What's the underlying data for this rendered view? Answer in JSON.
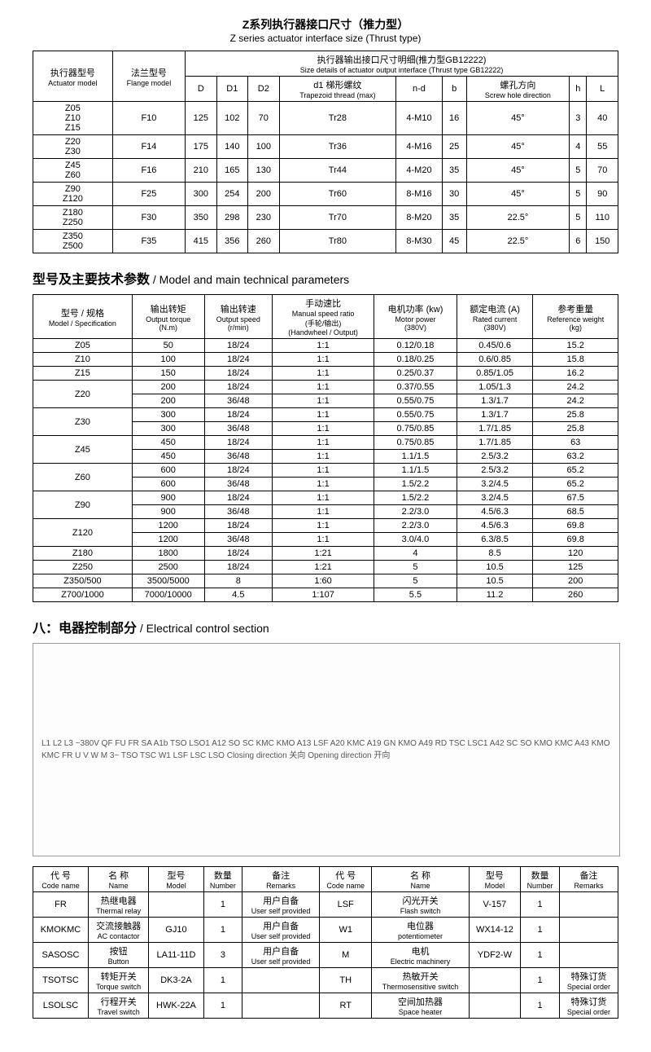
{
  "title": {
    "cn": "Z系列执行器接口尺寸（推力型）",
    "en": "Z series actuator interface size (Thrust type)"
  },
  "table1": {
    "headers": {
      "actuator_model": {
        "cn": "执行器型号",
        "en": "Actuator model"
      },
      "flange_model": {
        "cn": "法兰型号",
        "en": "Flange model"
      },
      "group_title": {
        "cn": "执行器输出接口尺寸明细(推力型GB12222)",
        "en": "Size details of actuator output interface (Thrust type GB12222)"
      },
      "D": "D",
      "D1": "D1",
      "D2": "D2",
      "d1": {
        "cn": "d1 梯形螺纹",
        "en": "Trapezoid thread (max)"
      },
      "nd": "n-d",
      "b": "b",
      "screw": {
        "cn": "螺孔方向",
        "en": "Screw hole direction"
      },
      "h": "h",
      "L": "L"
    },
    "rows": [
      {
        "model": "Z05\nZ10\nZ15",
        "flange": "F10",
        "D": "125",
        "D1": "102",
        "D2": "70",
        "d1": "Tr28",
        "nd": "4-M10",
        "b": "16",
        "screw": "45°",
        "h": "3",
        "L": "40"
      },
      {
        "model": "Z20\nZ30",
        "flange": "F14",
        "D": "175",
        "D1": "140",
        "D2": "100",
        "d1": "Tr36",
        "nd": "4-M16",
        "b": "25",
        "screw": "45°",
        "h": "4",
        "L": "55"
      },
      {
        "model": "Z45\nZ60",
        "flange": "F16",
        "D": "210",
        "D1": "165",
        "D2": "130",
        "d1": "Tr44",
        "nd": "4-M20",
        "b": "35",
        "screw": "45°",
        "h": "5",
        "L": "70"
      },
      {
        "model": "Z90\nZ120",
        "flange": "F25",
        "D": "300",
        "D1": "254",
        "D2": "200",
        "d1": "Tr60",
        "nd": "8-M16",
        "b": "30",
        "screw": "45°",
        "h": "5",
        "L": "90"
      },
      {
        "model": "Z180\nZ250",
        "flange": "F30",
        "D": "350",
        "D1": "298",
        "D2": "230",
        "d1": "Tr70",
        "nd": "8-M20",
        "b": "35",
        "screw": "22.5°",
        "h": "5",
        "L": "110"
      },
      {
        "model": "Z350\nZ500",
        "flange": "F35",
        "D": "415",
        "D1": "356",
        "D2": "260",
        "d1": "Tr80",
        "nd": "8-M30",
        "b": "45",
        "screw": "22.5°",
        "h": "6",
        "L": "150"
      }
    ]
  },
  "section2_title": {
    "cn": "型号及主要技术参数",
    "en": " / Model and main technical parameters"
  },
  "table2": {
    "headers": {
      "model": {
        "cn": "型号 / 规格",
        "en": "Model / Specification"
      },
      "torque": {
        "cn": "输出转矩",
        "en": "Output torque",
        "unit": "(N.m)"
      },
      "speed": {
        "cn": "输出转速",
        "en": "Output speed",
        "unit": "(r/min)"
      },
      "ratio": {
        "cn": "手动速比",
        "en": "Manual speed ratio",
        "sub": "(手轮/输出)",
        "sub_en": "(Handwheel / Output)"
      },
      "power": {
        "cn": "电机功率 (kw)",
        "en": "Motor power",
        "unit": "(380V)"
      },
      "current": {
        "cn": "额定电流 (A)",
        "en": "Rated current",
        "unit": "(380V)"
      },
      "weight": {
        "cn": "参考重量",
        "en": "Reference weight",
        "unit": "(kg)"
      }
    },
    "rows": [
      {
        "m": "Z05",
        "t": "50",
        "s": "18/24",
        "r": "1:1",
        "p": "0.12/0.18",
        "c": "0.45/0.6",
        "w": "15.2",
        "rs": 1
      },
      {
        "m": "Z10",
        "t": "100",
        "s": "18/24",
        "r": "1:1",
        "p": "0.18/0.25",
        "c": "0.6/0.85",
        "w": "15.8",
        "rs": 1
      },
      {
        "m": "Z15",
        "t": "150",
        "s": "18/24",
        "r": "1:1",
        "p": "0.25/0.37",
        "c": "0.85/1.05",
        "w": "16.2",
        "rs": 1
      },
      {
        "m": "Z20",
        "t": "200",
        "s": "18/24",
        "r": "1:1",
        "p": "0.37/0.55",
        "c": "1.05/1.3",
        "w": "24.2",
        "rs": 2
      },
      {
        "m": "",
        "t": "200",
        "s": "36/48",
        "r": "1:1",
        "p": "0.55/0.75",
        "c": "1.3/1.7",
        "w": "24.2",
        "rs": 0
      },
      {
        "m": "Z30",
        "t": "300",
        "s": "18/24",
        "r": "1:1",
        "p": "0.55/0.75",
        "c": "1.3/1.7",
        "w": "25.8",
        "rs": 2
      },
      {
        "m": "",
        "t": "300",
        "s": "36/48",
        "r": "1:1",
        "p": "0.75/0.85",
        "c": "1.7/1.85",
        "w": "25.8",
        "rs": 0
      },
      {
        "m": "Z45",
        "t": "450",
        "s": "18/24",
        "r": "1:1",
        "p": "0.75/0.85",
        "c": "1.7/1.85",
        "w": "63",
        "rs": 2
      },
      {
        "m": "",
        "t": "450",
        "s": "36/48",
        "r": "1:1",
        "p": "1.1/1.5",
        "c": "2.5/3.2",
        "w": "63.2",
        "rs": 0
      },
      {
        "m": "Z60",
        "t": "600",
        "s": "18/24",
        "r": "1:1",
        "p": "1.1/1.5",
        "c": "2.5/3.2",
        "w": "65.2",
        "rs": 2
      },
      {
        "m": "",
        "t": "600",
        "s": "36/48",
        "r": "1:1",
        "p": "1.5/2.2",
        "c": "3.2/4.5",
        "w": "65.2",
        "rs": 0
      },
      {
        "m": "Z90",
        "t": "900",
        "s": "18/24",
        "r": "1:1",
        "p": "1.5/2.2",
        "c": "3.2/4.5",
        "w": "67.5",
        "rs": 2
      },
      {
        "m": "",
        "t": "900",
        "s": "36/48",
        "r": "1:1",
        "p": "2.2/3.0",
        "c": "4.5/6.3",
        "w": "68.5",
        "rs": 0
      },
      {
        "m": "Z120",
        "t": "1200",
        "s": "18/24",
        "r": "1:1",
        "p": "2.2/3.0",
        "c": "4.5/6.3",
        "w": "69.8",
        "rs": 2
      },
      {
        "m": "",
        "t": "1200",
        "s": "36/48",
        "r": "1:1",
        "p": "3.0/4.0",
        "c": "6.3/8.5",
        "w": "69.8",
        "rs": 0
      },
      {
        "m": "Z180",
        "t": "1800",
        "s": "18/24",
        "r": "1:21",
        "p": "4",
        "c": "8.5",
        "w": "120",
        "rs": 1
      },
      {
        "m": "Z250",
        "t": "2500",
        "s": "18/24",
        "r": "1:21",
        "p": "5",
        "c": "10.5",
        "w": "125",
        "rs": 1
      },
      {
        "m": "Z350/500",
        "t": "3500/5000",
        "s": "8",
        "r": "1:60",
        "p": "5",
        "c": "10.5",
        "w": "200",
        "rs": 1
      },
      {
        "m": "Z700/1000",
        "t": "7000/10000",
        "s": "4.5",
        "r": "1:107",
        "p": "5.5",
        "c": "11.2",
        "w": "260",
        "rs": 1
      }
    ]
  },
  "section3_title": {
    "cn": "八：电器控制部分",
    "en": " / Electrical control section"
  },
  "diagram_labels": "L1 L2 L3 ~380V  QF FU FR SA A1b  TSO LSO1 A12 SO SC KMC KMO A13  LSF A20 KMC A19 GN  KMO A49 RD  TSC LSC1 A42 SC SO KMO KMC A43  KMO KMC FR U V W M 3~  TSO TSC W1 LSF LSC LSO  Closing direction 关向  Opening direction 开向",
  "table3": {
    "headers": {
      "code": {
        "cn": "代 号",
        "en": "Code name"
      },
      "name": {
        "cn": "名 称",
        "en": "Name"
      },
      "model": {
        "cn": "型号",
        "en": "Model"
      },
      "number": {
        "cn": "数量",
        "en": "Number"
      },
      "remarks": {
        "cn": "备注",
        "en": "Remarks"
      }
    },
    "rows": [
      {
        "c1": "FR",
        "n1": {
          "cn": "热继电器",
          "en": "Thermal relay"
        },
        "m1": "",
        "q1": "1",
        "r1": {
          "cn": "用户自备",
          "en": "User self provided"
        },
        "c2": "LSF",
        "n2": {
          "cn": "闪光开关",
          "en": "Flash switch"
        },
        "m2": "V-157",
        "q2": "1",
        "r2": ""
      },
      {
        "c1": "KMOKMC",
        "n1": {
          "cn": "交流接触器",
          "en": "AC contactor"
        },
        "m1": "GJ10",
        "q1": "1",
        "r1": {
          "cn": "用户自备",
          "en": "User self provided"
        },
        "c2": "W1",
        "n2": {
          "cn": "电位器",
          "en": "potentiometer"
        },
        "m2": "WX14-12",
        "q2": "1",
        "r2": ""
      },
      {
        "c1": "SASOSC",
        "n1": {
          "cn": "按钮",
          "en": "Button"
        },
        "m1": "LA11-11D",
        "q1": "3",
        "r1": {
          "cn": "用户自备",
          "en": "User self provided"
        },
        "c2": "M",
        "n2": {
          "cn": "电机",
          "en": "Electric machinery"
        },
        "m2": "YDF2-W",
        "q2": "1",
        "r2": ""
      },
      {
        "c1": "TSOTSC",
        "n1": {
          "cn": "转矩开关",
          "en": "Torque switch"
        },
        "m1": "DK3-2A",
        "q1": "1",
        "r1": "",
        "c2": "TH",
        "n2": {
          "cn": "热敏开关",
          "en": "Thermosensitive switch"
        },
        "m2": "",
        "q2": "1",
        "r2": {
          "cn": "特殊订货",
          "en": "Special order"
        }
      },
      {
        "c1": "LSOLSC",
        "n1": {
          "cn": "行程开关",
          "en": "Travel switch"
        },
        "m1": "HWK-22A",
        "q1": "1",
        "r1": "",
        "c2": "RT",
        "n2": {
          "cn": "空间加热器",
          "en": "Space heater"
        },
        "m2": "",
        "q2": "1",
        "r2": {
          "cn": "特殊订货",
          "en": "Special order"
        }
      }
    ]
  }
}
